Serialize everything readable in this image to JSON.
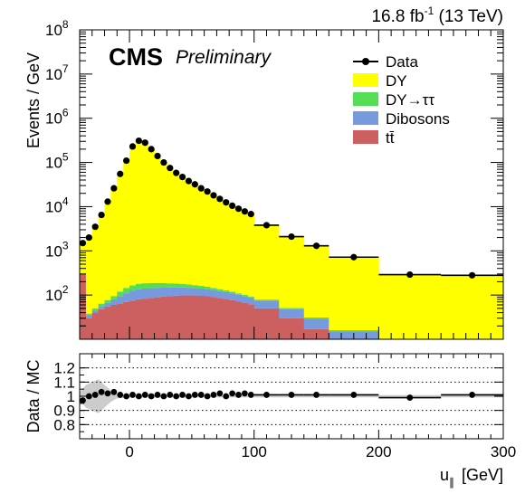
{
  "header": {
    "luminosity_value": "16.8 fb",
    "luminosity_exp": "-1",
    "energy": " (13 TeV)",
    "experiment": "CMS",
    "status": "Preliminary"
  },
  "colors": {
    "dy": "#ffff00",
    "dytautau": "#55dd55",
    "dibosons": "#7799dd",
    "ttbar": "#cc6060",
    "data": "#000000",
    "band": "#cccccc"
  },
  "chart_data": [
    {
      "type": "area",
      "xlabel_main": "u",
      "xlabel_sub": "∥",
      "xlabel_unit": "[GeV]",
      "ylabel": "Events / GeV",
      "xlim": [
        -40,
        300
      ],
      "ylim": [
        10,
        100000000
      ],
      "log_y": true,
      "y_ticks": [
        {
          "exp": "2",
          "value": 100
        },
        {
          "exp": "3",
          "value": 1000
        },
        {
          "exp": "4",
          "value": 10000
        },
        {
          "exp": "5",
          "value": 100000
        },
        {
          "exp": "6",
          "value": 1000000
        },
        {
          "exp": "7",
          "value": 10000000
        },
        {
          "exp": "8",
          "value": 100000000
        }
      ],
      "x_ticks": [
        0,
        100,
        200,
        300
      ],
      "legend_position": "top-right",
      "legend": [
        {
          "label": "Data",
          "kind": "marker",
          "color_key": "data"
        },
        {
          "label": "DY",
          "kind": "box",
          "color_key": "dy"
        },
        {
          "label": "DY→ττ",
          "kind": "box",
          "color_key": "dytautau"
        },
        {
          "label": "Dibosons",
          "kind": "box",
          "color_key": "dibosons"
        },
        {
          "label": "tt̄",
          "kind": "box",
          "color_key": "ttbar"
        }
      ],
      "bins": [
        {
          "lo": -40,
          "hi": -35,
          "tt": 300,
          "dib": 3,
          "dytt": 2,
          "total": 1500,
          "data": 1500
        },
        {
          "lo": -35,
          "hi": -30,
          "tt": 30,
          "dib": 5,
          "dytt": 3,
          "total": 2000,
          "data": 2000
        },
        {
          "lo": -30,
          "hi": -25,
          "tt": 40,
          "dib": 5,
          "dytt": 5,
          "total": 3500,
          "data": 3500
        },
        {
          "lo": -25,
          "hi": -20,
          "tt": 48,
          "dib": 8,
          "dytt": 8,
          "total": 6500,
          "data": 6500
        },
        {
          "lo": -20,
          "hi": -15,
          "tt": 55,
          "dib": 12,
          "dytt": 10,
          "total": 13000,
          "data": 13000
        },
        {
          "lo": -15,
          "hi": -10,
          "tt": 60,
          "dib": 20,
          "dytt": 15,
          "total": 26000,
          "data": 26000
        },
        {
          "lo": -10,
          "hi": -5,
          "tt": 65,
          "dib": 30,
          "dytt": 25,
          "total": 55000,
          "data": 55000
        },
        {
          "lo": -5,
          "hi": 0,
          "tt": 70,
          "dib": 40,
          "dytt": 35,
          "total": 110000,
          "data": 110000
        },
        {
          "lo": 0,
          "hi": 5,
          "tt": 75,
          "dib": 50,
          "dytt": 40,
          "total": 230000,
          "data": 230000
        },
        {
          "lo": 5,
          "hi": 10,
          "tt": 80,
          "dib": 55,
          "dytt": 45,
          "total": 310000,
          "data": 310000
        },
        {
          "lo": 10,
          "hi": 15,
          "tt": 83,
          "dib": 57,
          "dytt": 45,
          "total": 280000,
          "data": 280000
        },
        {
          "lo": 15,
          "hi": 20,
          "tt": 86,
          "dib": 57,
          "dytt": 44,
          "total": 200000,
          "data": 200000
        },
        {
          "lo": 20,
          "hi": 25,
          "tt": 89,
          "dib": 56,
          "dytt": 42,
          "total": 140000,
          "data": 140000
        },
        {
          "lo": 25,
          "hi": 30,
          "tt": 92,
          "dib": 55,
          "dytt": 40,
          "total": 100000,
          "data": 100000
        },
        {
          "lo": 30,
          "hi": 35,
          "tt": 95,
          "dib": 53,
          "dytt": 36,
          "total": 75000,
          "data": 75000
        },
        {
          "lo": 35,
          "hi": 40,
          "tt": 97,
          "dib": 52,
          "dytt": 33,
          "total": 58000,
          "data": 58000
        },
        {
          "lo": 40,
          "hi": 45,
          "tt": 98,
          "dib": 50,
          "dytt": 30,
          "total": 47000,
          "data": 47000
        },
        {
          "lo": 45,
          "hi": 50,
          "tt": 98,
          "dib": 48,
          "dytt": 27,
          "total": 38000,
          "data": 38000
        },
        {
          "lo": 50,
          "hi": 55,
          "tt": 98,
          "dib": 46,
          "dytt": 24,
          "total": 32000,
          "data": 32000
        },
        {
          "lo": 55,
          "hi": 60,
          "tt": 96,
          "dib": 44,
          "dytt": 21,
          "total": 26000,
          "data": 26000
        },
        {
          "lo": 60,
          "hi": 65,
          "tt": 94,
          "dib": 42,
          "dytt": 18,
          "total": 22000,
          "data": 22000
        },
        {
          "lo": 65,
          "hi": 70,
          "tt": 90,
          "dib": 40,
          "dytt": 15,
          "total": 18000,
          "data": 18000
        },
        {
          "lo": 70,
          "hi": 75,
          "tt": 86,
          "dib": 37,
          "dytt": 13,
          "total": 15000,
          "data": 15000
        },
        {
          "lo": 75,
          "hi": 80,
          "tt": 82,
          "dib": 35,
          "dytt": 11,
          "total": 12500,
          "data": 12500
        },
        {
          "lo": 80,
          "hi": 85,
          "tt": 77,
          "dib": 33,
          "dytt": 9,
          "total": 10500,
          "data": 10500
        },
        {
          "lo": 85,
          "hi": 90,
          "tt": 72,
          "dib": 30,
          "dytt": 7,
          "total": 9000,
          "data": 9000
        },
        {
          "lo": 90,
          "hi": 95,
          "tt": 67,
          "dib": 28,
          "dytt": 6,
          "total": 7800,
          "data": 7800
        },
        {
          "lo": 95,
          "hi": 100,
          "tt": 62,
          "dib": 26,
          "dytt": 5,
          "total": 6800,
          "data": 6800
        },
        {
          "lo": 100,
          "hi": 120,
          "tt": 50,
          "dib": 25,
          "dytt": 4,
          "total": 3800,
          "data": 3800
        },
        {
          "lo": 120,
          "hi": 140,
          "tt": 30,
          "dib": 18,
          "dytt": 3,
          "total": 2100,
          "data": 2100
        },
        {
          "lo": 140,
          "hi": 160,
          "tt": 17,
          "dib": 12,
          "dytt": 2,
          "total": 1300,
          "data": 1300
        },
        {
          "lo": 160,
          "hi": 200,
          "tt": 9,
          "dib": 6,
          "dytt": 1,
          "total": 720,
          "data": 720
        },
        {
          "lo": 200,
          "hi": 250,
          "tt": 3,
          "dib": 3,
          "dytt": 1,
          "total": 290,
          "data": 290
        },
        {
          "lo": 250,
          "hi": 300,
          "tt": 2,
          "dib": 2,
          "dytt": 1,
          "total": 280,
          "data": 280
        }
      ]
    },
    {
      "type": "scatter",
      "ylabel": "Data / MC",
      "xlabel": "",
      "xlim": [
        -40,
        300
      ],
      "ylim": [
        0.7,
        1.3
      ],
      "y_ticks": [
        "0.8",
        "0.9",
        "1",
        "1.1",
        "1.2"
      ],
      "gridlines_y": [
        0.8,
        0.9,
        1.1,
        1.2
      ],
      "ratio": [
        {
          "x": -37.5,
          "xerr": 2.5,
          "y": 0.97
        },
        {
          "x": -32.5,
          "xerr": 2.5,
          "y": 1.0
        },
        {
          "x": -27.5,
          "xerr": 2.5,
          "y": 1.01
        },
        {
          "x": -22.5,
          "xerr": 2.5,
          "y": 1.03
        },
        {
          "x": -17.5,
          "xerr": 2.5,
          "y": 1.02
        },
        {
          "x": -12.5,
          "xerr": 2.5,
          "y": 1.03
        },
        {
          "x": -7.5,
          "xerr": 2.5,
          "y": 1.01
        },
        {
          "x": -2.5,
          "xerr": 2.5,
          "y": 1.0
        },
        {
          "x": 2.5,
          "xerr": 2.5,
          "y": 1.01
        },
        {
          "x": 7.5,
          "xerr": 2.5,
          "y": 1.0
        },
        {
          "x": 12.5,
          "xerr": 2.5,
          "y": 1.01
        },
        {
          "x": 17.5,
          "xerr": 2.5,
          "y": 1.0
        },
        {
          "x": 22.5,
          "xerr": 2.5,
          "y": 1.01
        },
        {
          "x": 27.5,
          "xerr": 2.5,
          "y": 1.0
        },
        {
          "x": 32.5,
          "xerr": 2.5,
          "y": 1.01
        },
        {
          "x": 37.5,
          "xerr": 2.5,
          "y": 1.0
        },
        {
          "x": 42.5,
          "xerr": 2.5,
          "y": 1.01
        },
        {
          "x": 47.5,
          "xerr": 2.5,
          "y": 1.0
        },
        {
          "x": 52.5,
          "xerr": 2.5,
          "y": 1.01
        },
        {
          "x": 57.5,
          "xerr": 2.5,
          "y": 1.01
        },
        {
          "x": 62.5,
          "xerr": 2.5,
          "y": 1.0
        },
        {
          "x": 67.5,
          "xerr": 2.5,
          "y": 1.01
        },
        {
          "x": 72.5,
          "xerr": 2.5,
          "y": 1.02
        },
        {
          "x": 77.5,
          "xerr": 2.5,
          "y": 1.0
        },
        {
          "x": 82.5,
          "xerr": 2.5,
          "y": 1.02
        },
        {
          "x": 87.5,
          "xerr": 2.5,
          "y": 1.01
        },
        {
          "x": 92.5,
          "xerr": 2.5,
          "y": 1.02
        },
        {
          "x": 97.5,
          "xerr": 2.5,
          "y": 1.01
        },
        {
          "x": 110,
          "xerr": 10,
          "y": 1.01
        },
        {
          "x": 130,
          "xerr": 10,
          "y": 1.01
        },
        {
          "x": 150,
          "xerr": 10,
          "y": 1.01
        },
        {
          "x": 180,
          "xerr": 20,
          "y": 1.01
        },
        {
          "x": 225,
          "xerr": 25,
          "y": 0.99
        },
        {
          "x": 275,
          "xerr": 25,
          "y": 1.01
        }
      ],
      "mc_uncertainty": [
        {
          "x": -40,
          "half_width": 0.03
        },
        {
          "x": -35,
          "half_width": 0.08
        },
        {
          "x": -30,
          "half_width": 0.1
        },
        {
          "x": -25,
          "half_width": 0.12
        },
        {
          "x": -20,
          "half_width": 0.08
        },
        {
          "x": -15,
          "half_width": 0.04
        },
        {
          "x": -10,
          "half_width": 0.015
        },
        {
          "x": 0,
          "half_width": 0.008
        },
        {
          "x": 300,
          "half_width": 0.008
        }
      ]
    }
  ]
}
